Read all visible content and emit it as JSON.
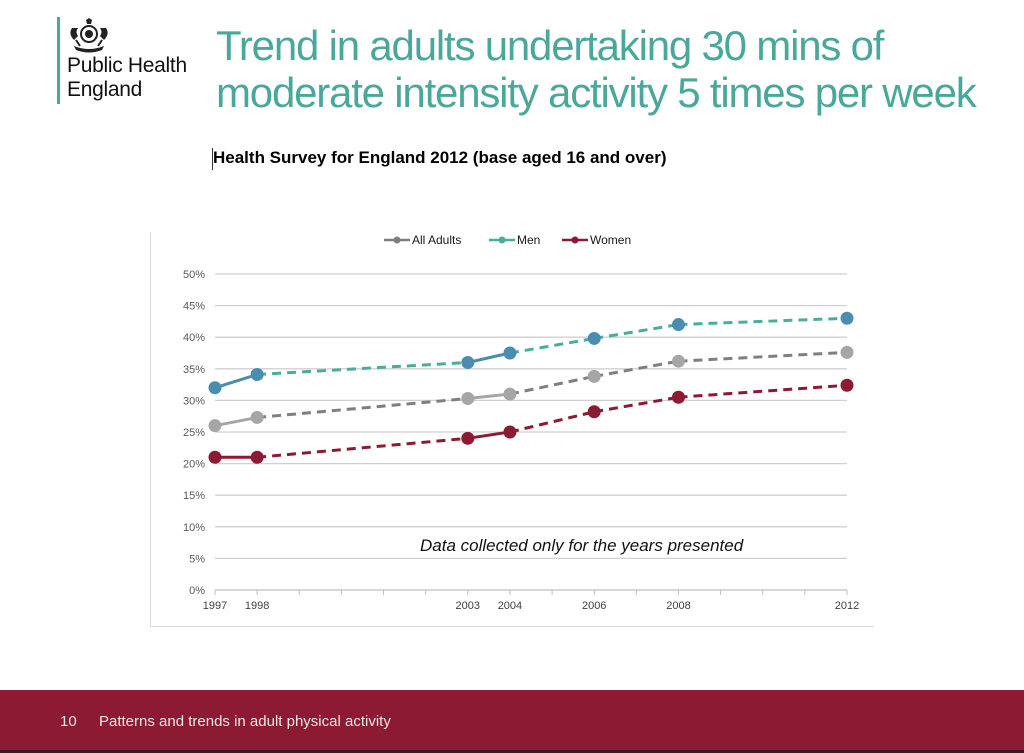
{
  "header": {
    "organisation_line1": "Public Health",
    "organisation_line2": "England",
    "logo_icon": "royal-crest-icon",
    "title_line1": "Trend in adults undertaking 30 mins of",
    "title_line2": "moderate intensity activity 5 times per week",
    "subtitle": "Health Survey for England 2012  (base aged 16 and over)"
  },
  "colors": {
    "brand_teal": "#49a89a",
    "footer_maroon": "#8b1a32"
  },
  "footer": {
    "page_number": "10",
    "text": "Patterns and trends in adult physical activity"
  },
  "chart_data": {
    "type": "line",
    "title": "",
    "xlabel": "",
    "ylabel": "",
    "x": [
      1997,
      1998,
      2003,
      2004,
      2006,
      2008,
      2012
    ],
    "x_range": [
      1997,
      2012
    ],
    "x_tick_labels": [
      "1997",
      "1998",
      "2003",
      "2004",
      "2006",
      "2008",
      "2012"
    ],
    "y_ticks": [
      0,
      5,
      10,
      15,
      20,
      25,
      30,
      35,
      40,
      45,
      50
    ],
    "y_tick_labels": [
      "0%",
      "5%",
      "10%",
      "15%",
      "20%",
      "25%",
      "30%",
      "35%",
      "40%",
      "45%",
      "50%"
    ],
    "ylim": [
      0,
      50
    ],
    "grid": true,
    "legend_position": "top-center",
    "annotation": "Data collected only for the years presented",
    "solid_segments_note": "Segments between consecutive survey years (1997-1998, 2003-2004) are solid; gaps are dashed",
    "series": [
      {
        "name": "All Adults",
        "line_color": "#7f7f7f",
        "marker_color": "#a6a6a6",
        "values": [
          26,
          27.3,
          30.3,
          31,
          33.8,
          36.2,
          37.6
        ]
      },
      {
        "name": "Men",
        "line_color": "#49ad9b",
        "marker_color": "#4b8db0",
        "values": [
          32,
          34.1,
          36,
          37.5,
          39.8,
          42,
          43
        ]
      },
      {
        "name": "Women",
        "line_color": "#8b1a32",
        "marker_color": "#8b1a32",
        "values": [
          21,
          21,
          24,
          25,
          28.2,
          30.5,
          32.4
        ]
      }
    ]
  }
}
